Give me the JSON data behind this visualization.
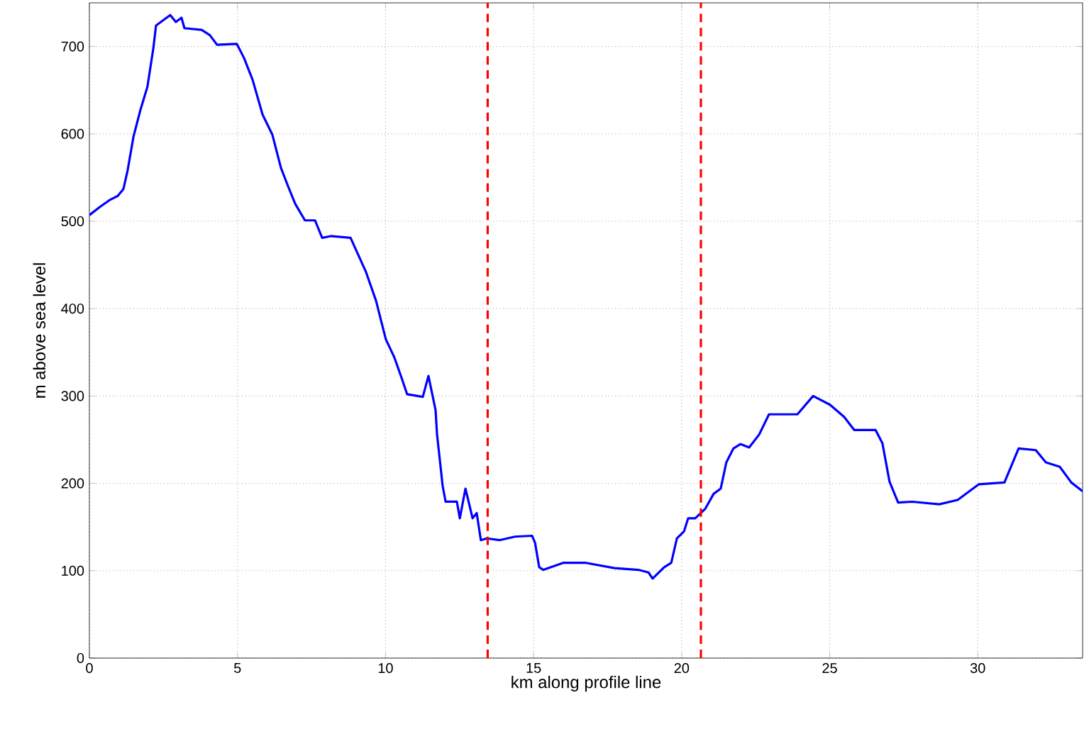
{
  "chart_data": {
    "type": "line",
    "xlabel": "km along profile line",
    "ylabel": "m above sea level",
    "xlim": [
      0,
      33.54
    ],
    "ylim": [
      0,
      750
    ],
    "xticks": [
      0,
      5,
      10,
      15,
      20,
      25,
      30
    ],
    "yticks": [
      0,
      100,
      200,
      300,
      400,
      500,
      600,
      700
    ],
    "grid": true,
    "line_style": "solid",
    "marker": "none",
    "ref_lines": [
      {
        "axis": "x",
        "value": 13.45,
        "color": "#ff0000",
        "line_style": "dashed"
      },
      {
        "axis": "x",
        "value": 20.65,
        "color": "#ff0000",
        "line_style": "dashed"
      }
    ],
    "series": [
      {
        "color": "#0000ff",
        "x": [
          0,
          0.34,
          0.67,
          0.96,
          1.15,
          1.29,
          1.49,
          1.72,
          1.96,
          2.16,
          2.25,
          2.73,
          2.92,
          3.11,
          3.21,
          3.79,
          4.07,
          4.31,
          4.98,
          5.22,
          5.51,
          5.85,
          6.18,
          6.47,
          6.71,
          6.95,
          7.28,
          7.62,
          7.86,
          8.15,
          8.82,
          9.06,
          9.34,
          9.68,
          10.01,
          10.3,
          10.54,
          10.73,
          11.26,
          11.45,
          11.69,
          11.74,
          11.93,
          12.03,
          12.41,
          12.51,
          12.7,
          12.94,
          13.08,
          13.22,
          13.42,
          13.85,
          14.37,
          14.95,
          15.05,
          15.19,
          15.33,
          16.0,
          16.77,
          17.73,
          18.54,
          18.88,
          19.02,
          19.41,
          19.65,
          19.84,
          20.08,
          20.22,
          20.46,
          20.8,
          21.08,
          21.32,
          21.51,
          21.75,
          21.99,
          22.28,
          22.62,
          22.95,
          23.91,
          24.44,
          25.01,
          25.49,
          25.83,
          26.55,
          26.78,
          27.02,
          27.31,
          27.79,
          28.7,
          29.32,
          30.04,
          30.9,
          31.38,
          31.96,
          32.3,
          32.77,
          33.16,
          33.54
        ],
        "values": [
          507,
          516,
          524,
          529,
          537,
          558,
          597,
          627,
          654,
          698,
          724,
          736,
          728,
          733,
          721,
          719,
          713,
          702,
          703,
          687,
          662,
          622,
          599,
          561,
          540,
          520,
          501,
          501,
          481,
          483,
          481,
          463,
          442,
          409,
          365,
          344,
          321,
          302,
          299,
          323,
          284,
          256,
          197,
          179,
          179,
          160,
          194,
          160,
          166,
          135,
          137,
          135,
          139,
          140,
          132,
          104,
          101,
          109,
          109,
          103,
          101,
          98,
          91,
          104,
          109,
          137,
          145,
          160,
          160,
          171,
          188,
          194,
          224,
          240,
          245,
          241,
          256,
          279,
          279,
          300,
          290,
          276,
          261,
          261,
          246,
          202,
          178,
          179,
          176,
          181,
          199,
          201,
          240,
          238,
          224,
          219,
          201,
          191
        ]
      }
    ]
  }
}
